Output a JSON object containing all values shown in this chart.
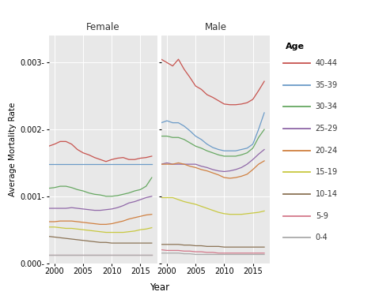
{
  "years": [
    1999,
    2000,
    2001,
    2002,
    2003,
    2004,
    2005,
    2006,
    2007,
    2008,
    2009,
    2010,
    2011,
    2012,
    2013,
    2014,
    2015,
    2016,
    2017
  ],
  "female": {
    "40-44": [
      0.00175,
      0.00178,
      0.00182,
      0.00182,
      0.00178,
      0.0017,
      0.00165,
      0.00162,
      0.00158,
      0.00155,
      0.00152,
      0.00155,
      0.00157,
      0.00158,
      0.00155,
      0.00155,
      0.00157,
      0.00158,
      0.0016
    ],
    "35-39": [
      0.00148,
      0.00148,
      0.00148,
      0.00148,
      0.00148,
      0.00148,
      0.00148,
      0.00148,
      0.00148,
      0.00148,
      0.00148,
      0.00148,
      0.00148,
      0.00148,
      0.00148,
      0.00148,
      0.00148,
      0.00148,
      0.00148
    ],
    "30-34": [
      0.00112,
      0.00113,
      0.00115,
      0.00115,
      0.00113,
      0.0011,
      0.00108,
      0.00105,
      0.00103,
      0.00102,
      0.001,
      0.001,
      0.00101,
      0.00103,
      0.00105,
      0.00108,
      0.0011,
      0.00115,
      0.00128
    ],
    "25-29": [
      0.00082,
      0.00082,
      0.00082,
      0.00082,
      0.00083,
      0.00082,
      0.00081,
      0.0008,
      0.00079,
      0.00079,
      0.0008,
      0.00081,
      0.00083,
      0.00086,
      0.0009,
      0.00092,
      0.00095,
      0.00098,
      0.001
    ],
    "20-24": [
      0.00062,
      0.00062,
      0.00063,
      0.00063,
      0.00063,
      0.00062,
      0.00061,
      0.0006,
      0.00059,
      0.00058,
      0.00058,
      0.00059,
      0.00061,
      0.00063,
      0.00066,
      0.00068,
      0.0007,
      0.00072,
      0.00073
    ],
    "15-19": [
      0.00054,
      0.00054,
      0.00053,
      0.00052,
      0.00052,
      0.00051,
      0.0005,
      0.00049,
      0.00048,
      0.00047,
      0.00046,
      0.00046,
      0.00046,
      0.00046,
      0.00047,
      0.00048,
      0.0005,
      0.00051,
      0.00053
    ],
    "10-14": [
      0.0004,
      0.00039,
      0.00038,
      0.00037,
      0.00036,
      0.00035,
      0.00034,
      0.00033,
      0.00032,
      0.00031,
      0.00031,
      0.0003,
      0.0003,
      0.0003,
      0.0003,
      0.0003,
      0.0003,
      0.0003,
      0.0003
    ],
    "5-9": [
      0.00013,
      0.00013,
      0.00013,
      0.00013,
      0.00013,
      0.00013,
      0.00013,
      0.00013,
      0.00013,
      0.00013,
      0.00013,
      0.00013,
      0.00013,
      0.00013,
      0.00013,
      0.00013,
      0.00013,
      0.00013,
      0.00013
    ],
    "0-4": [
      0.00012,
      0.00012,
      0.00012,
      0.00012,
      0.00012,
      0.00012,
      0.00012,
      0.00012,
      0.00012,
      0.00012,
      0.00012,
      0.00012,
      0.00012,
      0.00012,
      0.00012,
      0.00012,
      0.00012,
      0.00012,
      0.00012
    ]
  },
  "male": {
    "40-44": [
      0.00305,
      0.003,
      0.00295,
      0.00305,
      0.0029,
      0.00278,
      0.00265,
      0.0026,
      0.00252,
      0.00248,
      0.00243,
      0.00238,
      0.00237,
      0.00237,
      0.00238,
      0.0024,
      0.00245,
      0.00258,
      0.00272
    ],
    "35-39": [
      0.0021,
      0.00213,
      0.0021,
      0.0021,
      0.00205,
      0.00198,
      0.0019,
      0.00185,
      0.00178,
      0.00173,
      0.0017,
      0.00168,
      0.00168,
      0.00168,
      0.0017,
      0.00172,
      0.00178,
      0.002,
      0.00225
    ],
    "30-34": [
      0.0019,
      0.0019,
      0.00188,
      0.00188,
      0.00185,
      0.0018,
      0.00175,
      0.00172,
      0.00168,
      0.00165,
      0.00162,
      0.0016,
      0.0016,
      0.0016,
      0.00162,
      0.00165,
      0.00172,
      0.00188,
      0.002
    ],
    "25-29": [
      0.00148,
      0.0015,
      0.00148,
      0.00148,
      0.00148,
      0.00148,
      0.00148,
      0.00145,
      0.00143,
      0.0014,
      0.00138,
      0.00137,
      0.00138,
      0.0014,
      0.00143,
      0.00148,
      0.00155,
      0.00163,
      0.0017
    ],
    "20-24": [
      0.00148,
      0.00148,
      0.00148,
      0.0015,
      0.00148,
      0.00145,
      0.00143,
      0.0014,
      0.00138,
      0.00135,
      0.00132,
      0.00128,
      0.00127,
      0.00128,
      0.0013,
      0.00133,
      0.0014,
      0.00148,
      0.00153
    ],
    "15-19": [
      0.00098,
      0.00098,
      0.00098,
      0.00095,
      0.00092,
      0.0009,
      0.00088,
      0.00085,
      0.00082,
      0.00079,
      0.00076,
      0.00074,
      0.00073,
      0.00073,
      0.00073,
      0.00074,
      0.00075,
      0.00076,
      0.00078
    ],
    "10-14": [
      0.00028,
      0.00028,
      0.00028,
      0.00028,
      0.00027,
      0.00027,
      0.00026,
      0.00026,
      0.00025,
      0.00025,
      0.00025,
      0.00024,
      0.00024,
      0.00024,
      0.00024,
      0.00024,
      0.00024,
      0.00024,
      0.00024
    ],
    "5-9": [
      0.0002,
      0.00019,
      0.00019,
      0.00019,
      0.00018,
      0.00018,
      0.00017,
      0.00017,
      0.00016,
      0.00016,
      0.00015,
      0.00015,
      0.00015,
      0.00015,
      0.00015,
      0.00015,
      0.00015,
      0.00015,
      0.00015
    ],
    "0-4": [
      0.00015,
      0.00015,
      0.00015,
      0.00015,
      0.00014,
      0.00014,
      0.00013,
      0.00013,
      0.00013,
      0.00013,
      0.00013,
      0.00013,
      0.00013,
      0.00013,
      0.00013,
      0.00013,
      0.00013,
      0.00013,
      0.00013
    ]
  },
  "age_groups": [
    "40-44",
    "35-39",
    "30-34",
    "25-29",
    "20-24",
    "15-19",
    "10-14",
    "5-9",
    "0-4"
  ],
  "colors": {
    "40-44": "#c7534e",
    "35-39": "#6b9bc8",
    "30-34": "#67a862",
    "25-29": "#9068a8",
    "20-24": "#d08040",
    "15-19": "#c8c840",
    "10-14": "#8b7355",
    "5-9": "#d4788a",
    "0-4": "#aaaaaa"
  },
  "title_female": "Female",
  "title_male": "Male",
  "xlabel": "Year",
  "ylabel": "Average Mortality Rate",
  "legend_title": "Age",
  "ylim": [
    0.0,
    0.0034
  ],
  "yticks": [
    0.0,
    0.001,
    0.002,
    0.003
  ],
  "xticks": [
    2000,
    2005,
    2010,
    2015
  ],
  "panel_bg": "#e8e8e8",
  "outer_bg": "#ffffff",
  "strip_bg": "#d4d4d4"
}
